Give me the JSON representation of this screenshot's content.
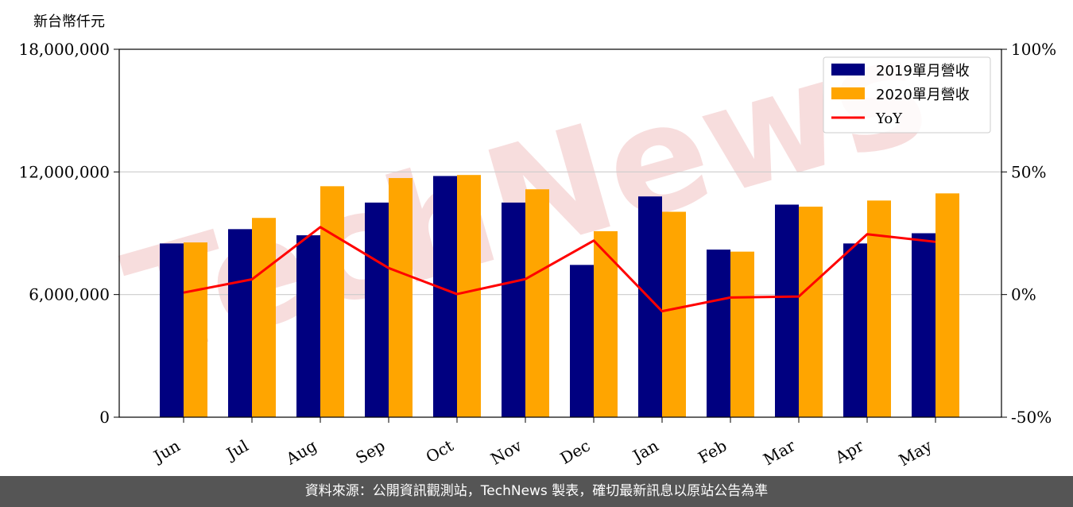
{
  "watermark": {
    "text": "TechNews",
    "color": "#f2c7c7"
  },
  "footer": {
    "text": "資料來源：公開資訊觀測站，TechNews 製表，確切最新訊息以原站公告為準"
  },
  "chart_data": {
    "type": "bar",
    "ylabel": "新台幣仟元",
    "categories": [
      "Jun",
      "Jul",
      "Aug",
      "Sep",
      "Oct",
      "Nov",
      "Dec",
      "Jan",
      "Feb",
      "Mar",
      "Apr",
      "May"
    ],
    "ylim": [
      0,
      18000000
    ],
    "yticks": [
      0,
      6000000,
      12000000,
      18000000
    ],
    "yticklabels": [
      "0",
      "6,000,000",
      "12,000,000",
      "18,000,000"
    ],
    "y2lim": [
      -50,
      100
    ],
    "y2ticks": [
      -50,
      0,
      50,
      100
    ],
    "y2ticklabels": [
      "-50%",
      "0%",
      "50%",
      "100%"
    ],
    "grid": "horizontal",
    "legend_position": "top-right",
    "series": [
      {
        "name": "2019單月營收",
        "kind": "bar",
        "color": "#000080",
        "values": [
          8500000,
          9200000,
          8900000,
          10500000,
          11800000,
          10500000,
          7450000,
          10800000,
          8200000,
          10400000,
          8500000,
          9000000
        ]
      },
      {
        "name": "2020單月營收",
        "kind": "bar",
        "color": "#ffa500",
        "values": [
          8550000,
          9750000,
          11300000,
          11700000,
          11850000,
          11150000,
          9100000,
          10050000,
          8100000,
          10300000,
          10600000,
          10950000
        ]
      },
      {
        "name": "YoY",
        "kind": "line",
        "axis": "right",
        "color": "#ff0000",
        "values": [
          0.8,
          6.2,
          27.5,
          10.8,
          0.2,
          6.3,
          22.0,
          -6.8,
          -1.2,
          -0.8,
          24.6,
          21.5
        ]
      }
    ]
  }
}
